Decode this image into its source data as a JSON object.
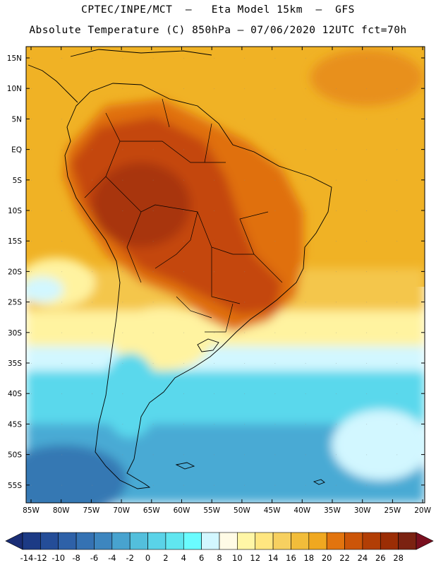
{
  "title": {
    "line1": "CPTEC/INPE/MCT  –   Eta Model 15km  –  GFS",
    "line2": "Absolute Temperature (C) 850hPa – 07/06/2020 12UTC fct=70h"
  },
  "map_data": {
    "lat_labels": [
      "15N",
      "10N",
      "5N",
      "EQ",
      "5S",
      "10S",
      "15S",
      "20S",
      "25S",
      "30S",
      "35S",
      "40S",
      "45S",
      "50S",
      "55S"
    ],
    "lon_labels": [
      "85W",
      "80W",
      "75W",
      "70W",
      "65W",
      "60W",
      "55W",
      "50W",
      "45W",
      "40W",
      "35W",
      "30W",
      "25W",
      "20W"
    ]
  },
  "colorbar": {
    "labels": [
      "-14",
      "-12",
      "-10",
      "-8",
      "-6",
      "-4",
      "-2",
      "0",
      "2",
      "4",
      "6",
      "8",
      "10",
      "12",
      "14",
      "16",
      "18",
      "20",
      "22",
      "24",
      "26",
      "28"
    ],
    "colors": [
      "#1c3a85",
      "#244d98",
      "#2e61a8",
      "#3572b3",
      "#3d86bf",
      "#48a3cf",
      "#53bfdc",
      "#5ad3e8",
      "#60e6f0",
      "#6afcff",
      "#d2f7ff",
      "#fffbe6",
      "#fff6a6",
      "#ffe680",
      "#f7d060",
      "#f2bd3a",
      "#f0a820",
      "#e2740e",
      "#cc5508",
      "#b23e05",
      "#9b2d05",
      "#7b2211"
    ],
    "low_arrow_color": "#1a2d75",
    "high_arrow_color": "#7a0f1f"
  },
  "palette": {
    "ocean_north": "#f0b225",
    "ocean_mid": "#fff3a0",
    "ocean_cool": "#5ad8ec",
    "ocean_cold": "#48aad4",
    "land_hot": "#c4470a",
    "land_warm": "#e0700f"
  }
}
